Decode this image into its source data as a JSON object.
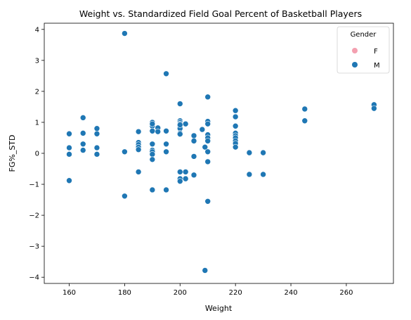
{
  "chart_data": {
    "type": "scatter",
    "title": "Weight vs. Standardized Field Goal Percent of Basketball Players",
    "xlabel": "Weight",
    "ylabel": "FG%_STD",
    "xlim": [
      151,
      277
    ],
    "ylim": [
      -4.2,
      4.2
    ],
    "xticks": [
      160,
      180,
      200,
      220,
      240,
      260
    ],
    "yticks": [
      -4,
      -3,
      -2,
      -1,
      0,
      1,
      2,
      3,
      4
    ],
    "grid": false,
    "legend": {
      "title": "Gender",
      "placement": "top-right",
      "entries": [
        {
          "label": "F",
          "color": "#f4a0b0"
        },
        {
          "label": "M",
          "color": "#1f77b4"
        }
      ]
    },
    "series": [
      {
        "name": "F",
        "color": "#f4a0b0",
        "x": [],
        "y": []
      },
      {
        "name": "M",
        "color": "#1f77b4",
        "x": [
          160,
          160,
          160,
          160,
          165,
          165,
          165,
          165,
          170,
          170,
          170,
          170,
          180,
          180,
          180,
          185,
          185,
          185,
          185,
          185,
          185,
          190,
          190,
          190,
          190,
          190,
          190,
          190,
          190,
          190,
          190,
          192,
          192,
          195,
          195,
          195,
          195,
          195,
          200,
          200,
          200,
          200,
          200,
          200,
          200,
          200,
          200,
          200,
          200,
          200,
          202,
          202,
          202,
          205,
          205,
          205,
          205,
          208,
          209,
          209,
          210,
          210,
          210,
          210,
          210,
          210,
          210,
          210,
          210,
          220,
          220,
          220,
          220,
          220,
          220,
          220,
          220,
          220,
          225,
          225,
          230,
          230,
          245,
          245,
          270,
          270
        ],
        "y": [
          0.63,
          0.18,
          -0.03,
          -0.88,
          1.15,
          0.65,
          0.3,
          0.1,
          0.8,
          0.63,
          0.18,
          -0.03,
          3.87,
          0.05,
          -1.38,
          0.7,
          0.35,
          0.28,
          0.2,
          0.12,
          -0.6,
          1.0,
          0.88,
          0.72,
          0.3,
          0.1,
          0.05,
          -0.03,
          -0.2,
          -1.18,
          0.95,
          0.82,
          0.7,
          2.57,
          0.72,
          0.3,
          0.05,
          -1.18,
          1.6,
          1.05,
          1.0,
          0.95,
          0.88,
          0.8,
          0.65,
          -0.6,
          -0.82,
          -0.9,
          0.62,
          0.92,
          0.95,
          -0.6,
          -0.82,
          0.57,
          0.4,
          -0.1,
          -0.7,
          0.77,
          0.2,
          -3.78,
          1.82,
          1.03,
          0.95,
          0.6,
          0.5,
          0.4,
          0.05,
          -0.27,
          -1.55,
          1.38,
          1.18,
          0.88,
          0.65,
          0.57,
          0.5,
          0.4,
          0.32,
          0.2,
          0.02,
          -0.68,
          0.02,
          -0.68,
          1.43,
          1.05,
          1.57,
          1.45
        ]
      }
    ]
  }
}
